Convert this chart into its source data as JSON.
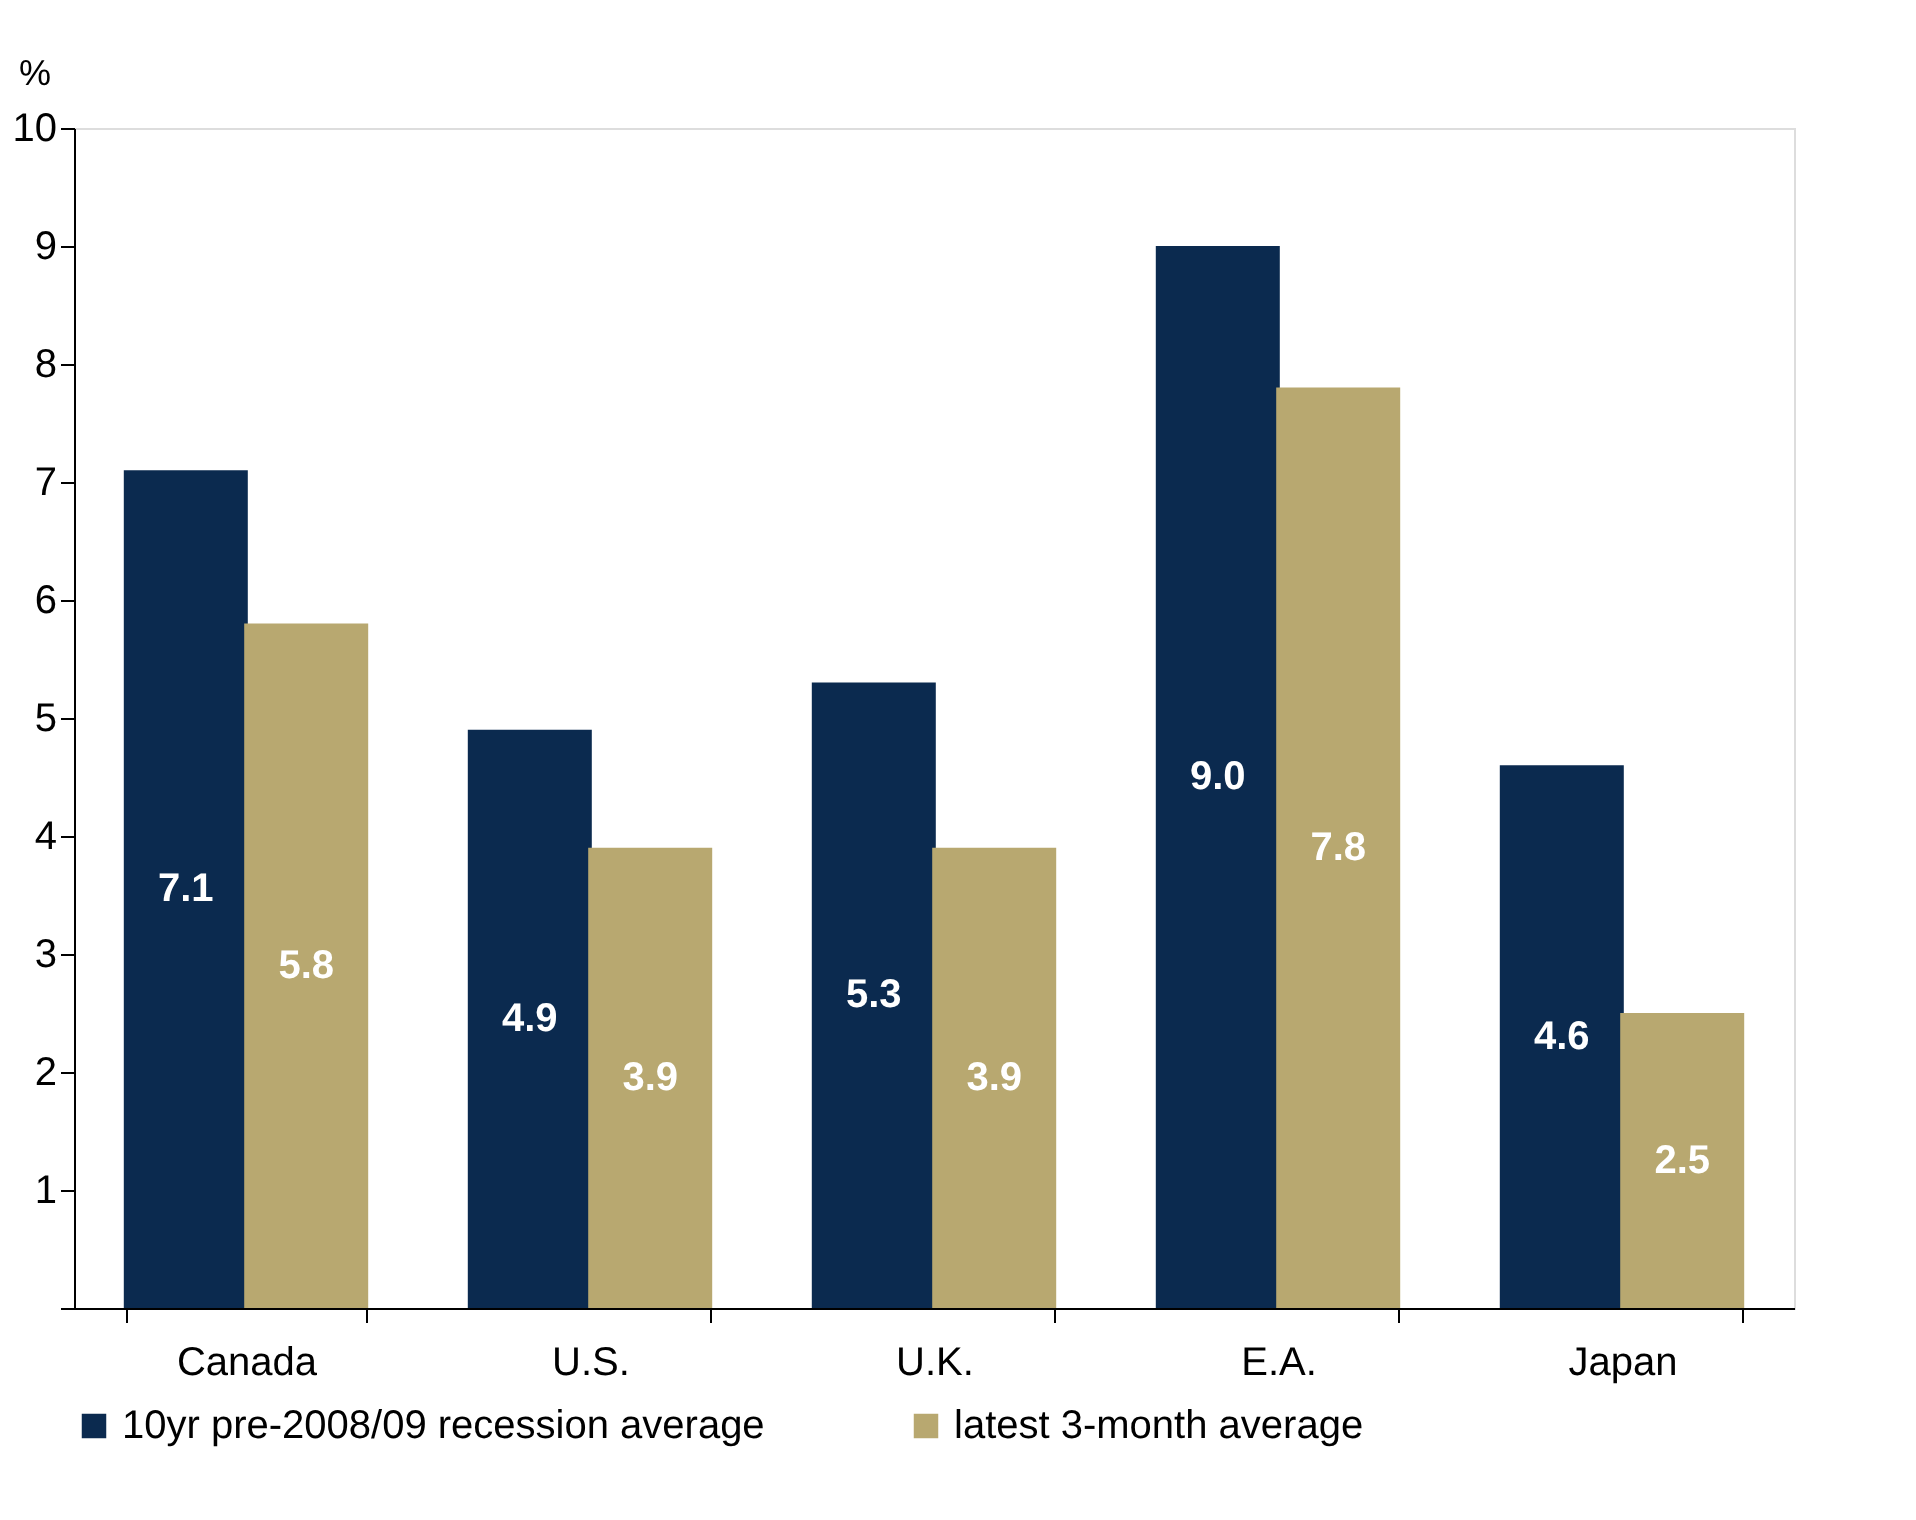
{
  "chart_data": {
    "type": "bar",
    "ylabel": "%",
    "categories": [
      "Canada",
      "U.S.",
      "U.K.",
      "E.A.",
      "Japan"
    ],
    "series": [
      {
        "name": "10yr pre-2008/09 recession average",
        "color": "#0b2a4f",
        "values": [
          7.1,
          4.9,
          5.3,
          9.0,
          4.6
        ],
        "value_labels": [
          "7.1",
          "4.9",
          "5.3",
          "9.0",
          "4.6"
        ]
      },
      {
        "name": "latest 3-month average",
        "color": "#b8a870",
        "values": [
          5.8,
          3.9,
          3.9,
          7.8,
          2.5
        ],
        "value_labels": [
          "5.8",
          "3.9",
          "3.9",
          "7.8",
          "2.5"
        ]
      }
    ],
    "ylim": [
      0,
      10
    ],
    "yticks": [
      {
        "value": 0,
        "label": null
      },
      1,
      2,
      3,
      4,
      5,
      6,
      7,
      8,
      9,
      10
    ],
    "grid": false,
    "legend": "bottom"
  }
}
